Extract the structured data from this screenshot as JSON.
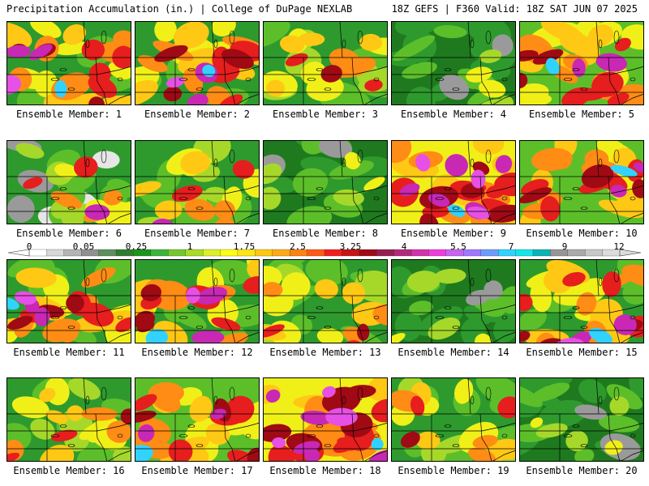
{
  "header": {
    "title_left": "Precipitation Accumulation (in.) | College of DuPage NEXLAB",
    "title_right": "18Z GEFS | F360 Valid: 18Z SAT JUN 07 2025"
  },
  "colorbar": {
    "tick_labels": [
      "0",
      "0.05",
      "0.25",
      "1",
      "1.75",
      "2.5",
      "3.25",
      "4",
      "5.5",
      "7",
      "9",
      "12"
    ],
    "colors": [
      "#ffffff",
      "#d8d8d8",
      "#b4b4b4",
      "#909090",
      "#5e8f5e",
      "#2f7d2f",
      "#1a961a",
      "#3cb43c",
      "#74c82c",
      "#a8dc28",
      "#dcf028",
      "#ffff14",
      "#ffe614",
      "#ffc814",
      "#ffaa14",
      "#ff8214",
      "#ff5a14",
      "#f01e1e",
      "#c81414",
      "#a00a14",
      "#961e50",
      "#b4287a",
      "#d232aa",
      "#f03cdc",
      "#c864f0",
      "#a078ff",
      "#6e9bff",
      "#32d2ff",
      "#14e6e6",
      "#0ab4b4",
      "#969696",
      "#aaaaaa",
      "#c8c8c8",
      "#dcdcdc"
    ]
  },
  "legend_colors": {
    "background": "#ffffff",
    "border": "#000000",
    "state_lines": "#000000"
  },
  "members": [
    {
      "label": "Ensemble Member: 1",
      "theme": "south-heavy"
    },
    {
      "label": "Ensemble Member: 2",
      "theme": "south-heavy"
    },
    {
      "label": "Ensemble Member: 3",
      "theme": "south-medium"
    },
    {
      "label": "Ensemble Member: 4",
      "theme": "dry"
    },
    {
      "label": "Ensemble Member: 5",
      "theme": "wet"
    },
    {
      "label": "Ensemble Member: 6",
      "theme": "dry-west"
    },
    {
      "label": "Ensemble Member: 7",
      "theme": "southeast"
    },
    {
      "label": "Ensemble Member: 8",
      "theme": "dry"
    },
    {
      "label": "Ensemble Member: 9",
      "theme": "very-wet"
    },
    {
      "label": "Ensemble Member: 10",
      "theme": "wet"
    },
    {
      "label": "Ensemble Member: 11",
      "theme": "south-heavy"
    },
    {
      "label": "Ensemble Member: 12",
      "theme": "south-heavy"
    },
    {
      "label": "Ensemble Member: 13",
      "theme": "south-medium"
    },
    {
      "label": "Ensemble Member: 14",
      "theme": "dry"
    },
    {
      "label": "Ensemble Member: 15",
      "theme": "south-heavy"
    },
    {
      "label": "Ensemble Member: 16",
      "theme": "south-medium"
    },
    {
      "label": "Ensemble Member: 17",
      "theme": "wet"
    },
    {
      "label": "Ensemble Member: 18",
      "theme": "very-wet"
    },
    {
      "label": "Ensemble Member: 19",
      "theme": "south-medium"
    },
    {
      "label": "Ensemble Member: 20",
      "theme": "dry"
    }
  ]
}
